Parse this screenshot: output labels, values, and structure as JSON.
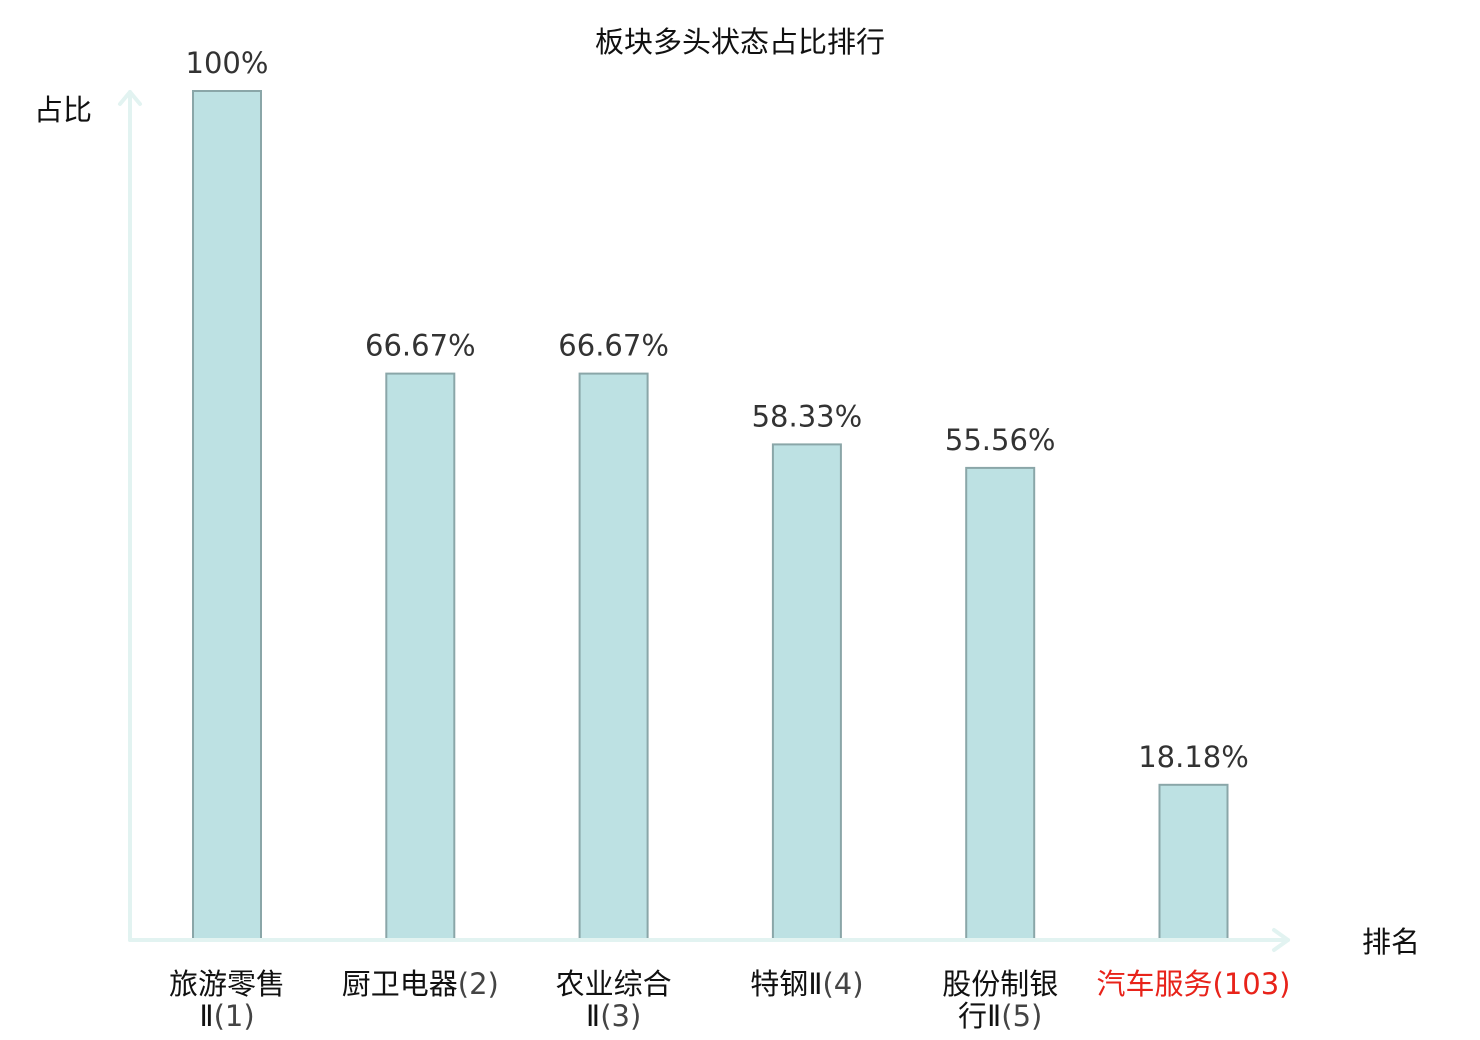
{
  "chart_data": {
    "type": "bar",
    "title": "板块多头状态占比排行",
    "xlabel": "排名",
    "ylabel": "占比",
    "ylim": [
      0,
      100
    ],
    "grid": false,
    "legend": "none",
    "categories": [
      {
        "name_lines": [
          "旅游零售",
          "Ⅱ"
        ],
        "rank": "(1)"
      },
      {
        "name_lines": [
          "厨卫电器"
        ],
        "rank": "(2)"
      },
      {
        "name_lines": [
          "农业综合",
          "Ⅱ"
        ],
        "rank": "(3)"
      },
      {
        "name_lines": [
          "特钢Ⅱ"
        ],
        "rank": "(4)"
      },
      {
        "name_lines": [
          "股份制银",
          "行Ⅱ"
        ],
        "rank": "(5)"
      },
      {
        "name_lines": [
          "汽车服务"
        ],
        "rank": "(103)",
        "highlight": true
      }
    ],
    "values": [
      100,
      66.67,
      66.67,
      58.33,
      55.56,
      18.18
    ],
    "value_labels": [
      "100%",
      "66.67%",
      "66.67%",
      "58.33%",
      "55.56%",
      "18.18%"
    ]
  },
  "colors": {
    "bar_fill": "#bde1e3",
    "bar_stroke": "#8aa6a8",
    "axis": "#e2f3f1",
    "highlight": "#e8231a",
    "text": "#111111"
  }
}
